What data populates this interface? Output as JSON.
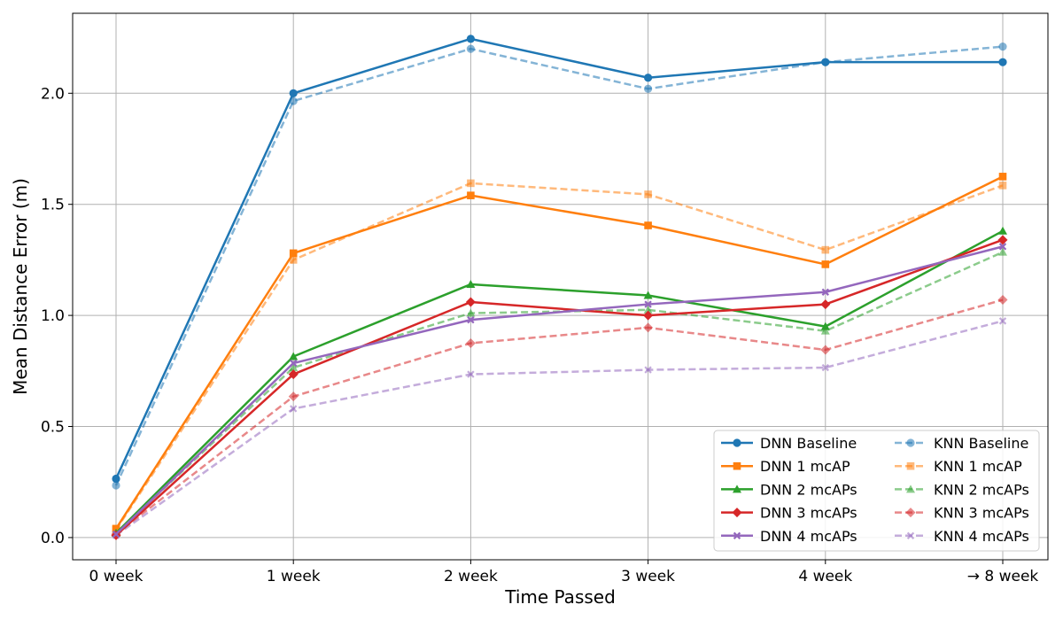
{
  "chart_data": {
    "type": "line",
    "title": "",
    "xlabel": "Time Passed",
    "ylabel": "Mean Distance Error (m)",
    "categories": [
      "0 week",
      "1 week",
      "2 week",
      "3 week",
      "4 week",
      "→ 8 week"
    ],
    "ylim": [
      -0.1,
      2.36
    ],
    "yticks": [
      "0.0",
      "0.5",
      "1.0",
      "1.5",
      "2.0"
    ],
    "grid": true,
    "legend": {
      "placement": "bottom-right",
      "columns": 2
    },
    "series": [
      {
        "name": "DNN Baseline",
        "color": "#1f77b4",
        "marker": "circle",
        "dashed": false,
        "values": [
          0.265,
          2.0,
          2.245,
          2.07,
          2.14,
          2.14
        ]
      },
      {
        "name": "DNN 1 mcAP",
        "color": "#ff7f0e",
        "marker": "square",
        "dashed": false,
        "values": [
          0.04,
          1.28,
          1.54,
          1.405,
          1.23,
          1.625
        ]
      },
      {
        "name": "DNN 2 mcAPs",
        "color": "#2ca02c",
        "marker": "triangle",
        "dashed": false,
        "values": [
          0.02,
          0.815,
          1.14,
          1.09,
          0.95,
          1.38
        ]
      },
      {
        "name": "DNN 3 mcAPs",
        "color": "#d62728",
        "marker": "diamond",
        "dashed": false,
        "values": [
          0.01,
          0.735,
          1.06,
          1.0,
          1.05,
          1.34
        ]
      },
      {
        "name": "DNN 4 mcAPs",
        "color": "#9467bd",
        "marker": "x",
        "dashed": false,
        "values": [
          0.015,
          0.785,
          0.98,
          1.05,
          1.105,
          1.31
        ]
      },
      {
        "name": "KNN Baseline",
        "color": "#1f77b4",
        "marker": "circle",
        "dashed": true,
        "values": [
          0.235,
          1.965,
          2.2,
          2.02,
          2.14,
          2.21
        ]
      },
      {
        "name": "KNN 1 mcAP",
        "color": "#ff7f0e",
        "marker": "square",
        "dashed": true,
        "values": [
          0.035,
          1.25,
          1.595,
          1.545,
          1.295,
          1.585
        ]
      },
      {
        "name": "KNN 2 mcAPs",
        "color": "#2ca02c",
        "marker": "triangle",
        "dashed": true,
        "values": [
          0.02,
          0.765,
          1.01,
          1.025,
          0.93,
          1.285
        ]
      },
      {
        "name": "KNN 3 mcAPs",
        "color": "#d62728",
        "marker": "diamond",
        "dashed": true,
        "values": [
          0.015,
          0.635,
          0.875,
          0.945,
          0.845,
          1.07
        ]
      },
      {
        "name": "KNN 4 mcAPs",
        "color": "#9467bd",
        "marker": "x",
        "dashed": true,
        "values": [
          0.01,
          0.58,
          0.735,
          0.755,
          0.765,
          0.975
        ]
      }
    ]
  }
}
